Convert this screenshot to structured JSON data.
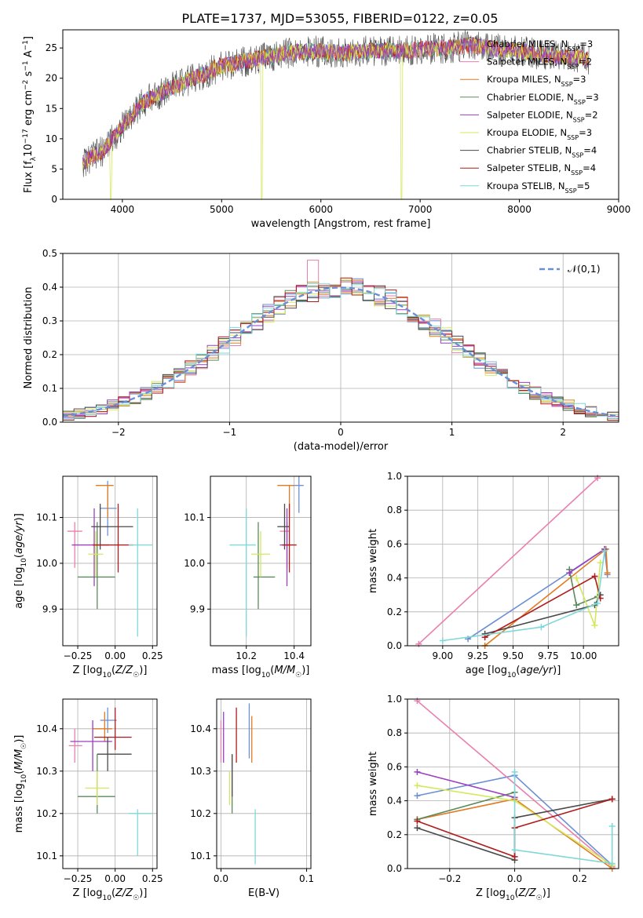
{
  "figure_title": "PLATE=1737, MJD=53055, FIBERID=0122, z=0.05",
  "models": [
    {
      "name": "Chabrier MILES",
      "color": "#6b8fd6",
      "nssp": "3"
    },
    {
      "name": "Salpeter MILES",
      "color": "#e87fae",
      "nssp": "2"
    },
    {
      "name": "Kroupa MILES",
      "color": "#e07b22",
      "nssp": "3"
    },
    {
      "name": "Chabrier ELODIE",
      "color": "#5c8a5c",
      "nssp": "3"
    },
    {
      "name": "Salpeter ELODIE",
      "color": "#9a3fc0",
      "nssp": "2"
    },
    {
      "name": "Kroupa ELODIE",
      "color": "#d5e85a",
      "nssp": "3"
    },
    {
      "name": "Chabrier STELIB",
      "color": "#4a4a4a",
      "nssp": "4"
    },
    {
      "name": "Salpeter STELIB",
      "color": "#b01c1c",
      "nssp": "4"
    },
    {
      "name": "Kroupa STELIB",
      "color": "#7fd8d8",
      "nssp": "5"
    }
  ],
  "chart_data": [
    {
      "id": "spectrum",
      "type": "line",
      "xlabel": "wavelength [Angstrom, rest frame]",
      "ylabel": "Flux [f_λ10^-17 erg cm^-2 s^-1 A^-1]",
      "xlim": [
        3400,
        9000
      ],
      "ylim": [
        0,
        28
      ],
      "xticks": [
        4000,
        5000,
        6000,
        7000,
        8000,
        9000
      ],
      "yticks": [
        0,
        5,
        10,
        15,
        20,
        25
      ],
      "continuum": {
        "x": [
          3600,
          3800,
          4000,
          4200,
          4500,
          4800,
          5000,
          5300,
          5600,
          5900,
          6200,
          6500,
          6800,
          7000,
          7300,
          7500,
          7700,
          8000,
          8200,
          8400,
          8600,
          8700
        ],
        "y": [
          6,
          8,
          12,
          16,
          18.5,
          20.5,
          22,
          23,
          24,
          24.5,
          24.2,
          24.5,
          24.5,
          24.8,
          25,
          25.5,
          25,
          24.5,
          24,
          23.5,
          23.5,
          23
        ]
      },
      "grid": false,
      "legend_position": "right"
    },
    {
      "id": "residuals",
      "type": "histogram",
      "xlabel": "(data-model)/error",
      "ylabel": "Normed distribution",
      "xlim": [
        -2.5,
        2.5
      ],
      "ylim": [
        0,
        0.5
      ],
      "xticks": [
        -2,
        -1,
        0,
        1,
        2
      ],
      "yticks": [
        0,
        0.1,
        0.2,
        0.3,
        0.4,
        0.5
      ],
      "bin_width": 0.1,
      "reference_curve": {
        "label": "𝒩(0,1)",
        "color": "#6b8fd6",
        "style": "dashed"
      },
      "grid": true,
      "legend_position": "top-right"
    },
    {
      "id": "age_vs_Z",
      "type": "errorbar",
      "xlabel": "Z [log10(Z/Z☉)]",
      "ylabel": "age [log10(age/yr)]",
      "xlim": [
        -0.35,
        0.28
      ],
      "ylim": [
        9.82,
        10.19
      ],
      "xticks": [
        -0.25,
        0.0,
        0.25
      ],
      "yticks": [
        9.9,
        10.0,
        10.1
      ],
      "points": [
        {
          "series": 0,
          "x": -0.05,
          "y": 10.12,
          "xerr": [
            0.05,
            0.06
          ],
          "yerr": [
            0.06,
            0.06
          ]
        },
        {
          "series": 1,
          "x": -0.27,
          "y": 10.07,
          "xerr": [
            0.05,
            0.05
          ],
          "yerr": [
            0.08,
            0.02
          ]
        },
        {
          "series": 2,
          "x": -0.05,
          "y": 10.17,
          "xerr": [
            0.08,
            0.04
          ],
          "yerr": [
            0.07,
            0.0
          ]
        },
        {
          "series": 3,
          "x": -0.12,
          "y": 9.97,
          "xerr": [
            0.13,
            0.12
          ],
          "yerr": [
            0.07,
            0.12
          ]
        },
        {
          "series": 4,
          "x": -0.14,
          "y": 10.04,
          "xerr": [
            0.15,
            0.1
          ],
          "yerr": [
            0.09,
            0.08
          ]
        },
        {
          "series": 5,
          "x": -0.13,
          "y": 10.02,
          "xerr": [
            0.05,
            0.05
          ],
          "yerr": [
            0.05,
            0.05
          ]
        },
        {
          "series": 6,
          "x": -0.1,
          "y": 10.08,
          "xerr": [
            0.06,
            0.22
          ],
          "yerr": [
            0.05,
            0.05
          ]
        },
        {
          "series": 7,
          "x": 0.02,
          "y": 10.04,
          "xerr": [
            0.17,
            0.1
          ],
          "yerr": [
            0.06,
            0.09
          ]
        },
        {
          "series": 8,
          "x": 0.15,
          "y": 10.04,
          "xerr": [
            0.06,
            0.1
          ],
          "yerr": [
            0.2,
            0.08
          ]
        }
      ],
      "grid": true
    },
    {
      "id": "age_vs_mass",
      "type": "errorbar",
      "xlabel": "mass [log10(M/M☉)]",
      "ylabel": "",
      "xlim": [
        10.05,
        10.47
      ],
      "ylim": [
        9.82,
        10.19
      ],
      "xticks": [
        10.2,
        10.4
      ],
      "yticks": [
        9.9,
        10.0,
        10.1
      ],
      "points": [
        {
          "series": 0,
          "x": 10.42,
          "y": 10.17,
          "xerr": [
            0.03,
            0.02
          ],
          "yerr": [
            0.06,
            0.02
          ]
        },
        {
          "series": 1,
          "x": 10.37,
          "y": 10.07,
          "xerr": [
            0.03,
            0.01
          ],
          "yerr": [
            0.08,
            0.02
          ]
        },
        {
          "series": 2,
          "x": 10.38,
          "y": 10.17,
          "xerr": [
            0.05,
            0.02
          ],
          "yerr": [
            0.07,
            0.0
          ]
        },
        {
          "series": 3,
          "x": 10.25,
          "y": 9.97,
          "xerr": [
            0.02,
            0.07
          ],
          "yerr": [
            0.07,
            0.12
          ]
        },
        {
          "series": 4,
          "x": 10.37,
          "y": 10.04,
          "xerr": [
            0.03,
            0.01
          ],
          "yerr": [
            0.09,
            0.08
          ]
        },
        {
          "series": 5,
          "x": 10.26,
          "y": 10.02,
          "xerr": [
            0.04,
            0.04
          ],
          "yerr": [
            0.05,
            0.05
          ]
        },
        {
          "series": 6,
          "x": 10.36,
          "y": 10.08,
          "xerr": [
            0.03,
            0.02
          ],
          "yerr": [
            0.05,
            0.05
          ]
        },
        {
          "series": 7,
          "x": 10.38,
          "y": 10.04,
          "xerr": [
            0.03,
            0.03
          ],
          "yerr": [
            0.06,
            0.09
          ]
        },
        {
          "series": 8,
          "x": 10.2,
          "y": 10.04,
          "xerr": [
            0.07,
            0.04
          ],
          "yerr": [
            0.2,
            0.08
          ]
        }
      ],
      "grid": true
    },
    {
      "id": "weight_vs_age",
      "type": "line",
      "xlabel": "age [log10(age/yr)]",
      "ylabel": "mass weight",
      "xlim": [
        8.75,
        10.25
      ],
      "ylim": [
        0,
        1
      ],
      "xticks": [
        9.0,
        9.25,
        9.5,
        9.75,
        10.0
      ],
      "yticks": [
        0,
        0.2,
        0.4,
        0.6,
        0.8,
        1.0
      ],
      "series": [
        {
          "series": 0,
          "x": [
            9.18,
            10.15,
            10.17
          ],
          "y": [
            0.04,
            0.57,
            0.42
          ]
        },
        {
          "series": 1,
          "x": [
            8.83,
            10.1
          ],
          "y": [
            0.01,
            0.99
          ]
        },
        {
          "series": 2,
          "x": [
            9.3,
            10.16,
            10.17
          ],
          "y": [
            0.0,
            0.57,
            0.43
          ]
        },
        {
          "series": 3,
          "x": [
            9.9,
            9.95,
            10.1
          ],
          "y": [
            0.45,
            0.24,
            0.29
          ]
        },
        {
          "series": 4,
          "x": [
            9.9,
            10.15
          ],
          "y": [
            0.43,
            0.57
          ]
        },
        {
          "series": 5,
          "x": [
            9.95,
            10.08,
            10.12
          ],
          "y": [
            0.4,
            0.12,
            0.49
          ]
        },
        {
          "series": 6,
          "x": [
            9.3,
            10.08,
            10.12
          ],
          "y": [
            0.07,
            0.24,
            0.3
          ]
        },
        {
          "series": 7,
          "x": [
            9.3,
            10.08,
            10.12
          ],
          "y": [
            0.05,
            0.41,
            0.28
          ]
        },
        {
          "series": 8,
          "x": [
            9.0,
            9.7,
            10.1,
            10.15
          ],
          "y": [
            0.03,
            0.11,
            0.25,
            0.56
          ]
        }
      ],
      "grid": true
    },
    {
      "id": "mass_vs_Z",
      "type": "errorbar",
      "xlabel": "Z [log10(Z/Z☉)]",
      "ylabel": "mass [log10(M/M☉)]",
      "xlim": [
        -0.35,
        0.28
      ],
      "ylim": [
        10.07,
        10.47
      ],
      "xticks": [
        -0.25,
        0.0,
        0.25
      ],
      "yticks": [
        10.1,
        10.2,
        10.3,
        10.4
      ],
      "points": [
        {
          "series": 0,
          "x": -0.05,
          "y": 10.42,
          "xerr": [
            0.05,
            0.06
          ],
          "yerr": [
            0.03,
            0.03
          ]
        },
        {
          "series": 1,
          "x": -0.27,
          "y": 10.36,
          "xerr": [
            0.04,
            0.05
          ],
          "yerr": [
            0.04,
            0.04
          ]
        },
        {
          "series": 2,
          "x": -0.07,
          "y": 10.4,
          "xerr": [
            0.08,
            0.05
          ],
          "yerr": [
            0.03,
            0.04
          ]
        },
        {
          "series": 3,
          "x": -0.12,
          "y": 10.24,
          "xerr": [
            0.13,
            0.12
          ],
          "yerr": [
            0.04,
            0.1
          ]
        },
        {
          "series": 4,
          "x": -0.15,
          "y": 10.37,
          "xerr": [
            0.15,
            0.13
          ],
          "yerr": [
            0.07,
            0.05
          ]
        },
        {
          "series": 5,
          "x": -0.12,
          "y": 10.26,
          "xerr": [
            0.08,
            0.08
          ],
          "yerr": [
            0.04,
            0.04
          ]
        },
        {
          "series": 6,
          "x": -0.05,
          "y": 10.34,
          "xerr": [
            0.07,
            0.16
          ],
          "yerr": [
            0.04,
            0.04
          ]
        },
        {
          "series": 7,
          "x": 0.0,
          "y": 10.38,
          "xerr": [
            0.14,
            0.11
          ],
          "yerr": [
            0.03,
            0.07
          ]
        },
        {
          "series": 8,
          "x": 0.15,
          "y": 10.2,
          "xerr": [
            0.06,
            0.1
          ],
          "yerr": [
            0.1,
            0.01
          ]
        }
      ],
      "grid": true
    },
    {
      "id": "mass_vs_ebv",
      "type": "errorbar",
      "xlabel": "E(B-V)",
      "ylabel": "",
      "xlim": [
        -0.005,
        0.105
      ],
      "ylim": [
        10.07,
        10.47
      ],
      "xticks": [
        0.0,
        0.1
      ],
      "yticks": [
        10.1,
        10.2,
        10.3,
        10.4
      ],
      "points": [
        {
          "series": 0,
          "x": 0.033,
          "y": 10.39,
          "xerr": [
            0,
            0
          ],
          "yerr": [
            0.06,
            0.07
          ]
        },
        {
          "series": 1,
          "x": 0.0,
          "y": 10.37,
          "xerr": [
            0,
            0
          ],
          "yerr": [
            0.05,
            0.05
          ]
        },
        {
          "series": 2,
          "x": 0.036,
          "y": 10.37,
          "xerr": [
            0,
            0
          ],
          "yerr": [
            0.05,
            0.06
          ]
        },
        {
          "series": 3,
          "x": 0.013,
          "y": 10.28,
          "xerr": [
            0,
            0
          ],
          "yerr": [
            0.08,
            0.06
          ]
        },
        {
          "series": 4,
          "x": 0.003,
          "y": 10.36,
          "xerr": [
            0,
            0
          ],
          "yerr": [
            0.04,
            0.08
          ]
        },
        {
          "series": 5,
          "x": 0.01,
          "y": 10.26,
          "xerr": [
            0,
            0
          ],
          "yerr": [
            0.04,
            0.04
          ]
        },
        {
          "series": 6,
          "x": 0.013,
          "y": 10.3,
          "xerr": [
            0,
            0
          ],
          "yerr": [
            0.06,
            0.04
          ]
        },
        {
          "series": 7,
          "x": 0.018,
          "y": 10.36,
          "xerr": [
            0,
            0
          ],
          "yerr": [
            0.04,
            0.09
          ]
        },
        {
          "series": 8,
          "x": 0.04,
          "y": 10.13,
          "xerr": [
            0,
            0
          ],
          "yerr": [
            0.05,
            0.08
          ]
        }
      ],
      "grid": true
    },
    {
      "id": "weight_vs_Z",
      "type": "line",
      "xlabel": "Z [log10(Z/Z☉)]",
      "ylabel": "mass weight",
      "xlim": [
        -0.33,
        0.32
      ],
      "ylim": [
        0,
        1
      ],
      "xticks": [
        -0.2,
        0.0,
        0.2
      ],
      "yticks": [
        0,
        0.2,
        0.4,
        0.6,
        0.8,
        1.0
      ],
      "series": [
        {
          "series": 0,
          "x": [
            -0.3,
            0.0,
            0.3
          ],
          "y": [
            0.43,
            0.55,
            0.02
          ]
        },
        {
          "series": 1,
          "x": [
            -0.3,
            0.3
          ],
          "y": [
            0.99,
            0.01
          ]
        },
        {
          "series": 2,
          "x": [
            -0.3,
            0.0,
            0.3
          ],
          "y": [
            0.29,
            0.41,
            0.0
          ]
        },
        {
          "series": 3,
          "x": [
            -0.3,
            0.0
          ],
          "y": [
            0.29,
            0.45
          ]
        },
        {
          "series": 4,
          "x": [
            -0.3,
            0.0
          ],
          "y": [
            0.57,
            0.42
          ]
        },
        {
          "series": 5,
          "x": [
            -0.3,
            0.0,
            0.3
          ],
          "y": [
            0.49,
            0.4,
            0.02
          ]
        },
        {
          "series": 6,
          "x": [
            -0.3,
            0.0,
            0.0,
            0.3
          ],
          "y": [
            0.24,
            0.05,
            0.3,
            0.41
          ]
        },
        {
          "series": 7,
          "x": [
            -0.3,
            0.0,
            0.0,
            0.3
          ],
          "y": [
            0.28,
            0.07,
            0.24,
            0.41
          ]
        },
        {
          "series": 8,
          "x": [
            0.0,
            0.0,
            0.3,
            0.3
          ],
          "y": [
            0.57,
            0.11,
            0.03,
            0.25
          ]
        }
      ],
      "grid": true
    }
  ]
}
